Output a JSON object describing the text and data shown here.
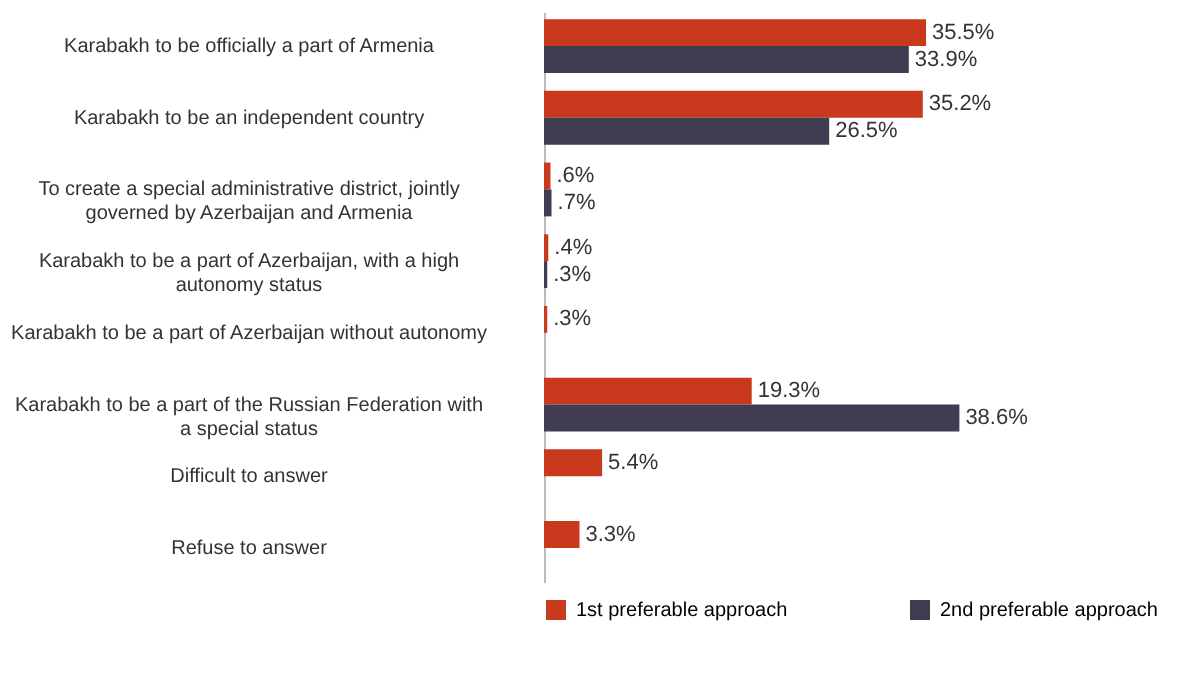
{
  "chart_data": {
    "type": "bar",
    "orientation": "horizontal",
    "legend": "bottom",
    "grid": false,
    "categories": [
      "Karabakh to be officially a part of Armenia",
      "Karabakh to be an independent country",
      "To create a special administrative district, jointly governed by Azerbaijan and Armenia",
      "Karabakh to be a part of Azerbaijan, with a high autonomy status",
      "Karabakh to be a part of Azerbaijan without autonomy",
      "Karabakh to be a part of the Russian Federation with a special status",
      "Difficult to answer",
      "Refuse to answer"
    ],
    "series": [
      {
        "name": "1st preferable approach",
        "color": "#c8391e",
        "values": [
          35.5,
          35.2,
          0.6,
          0.4,
          0.3,
          19.3,
          5.4,
          3.3
        ],
        "value_labels": [
          "35.5%",
          "35.2%",
          ".6%",
          ".4%",
          ".3%",
          "19.3%",
          "5.4%",
          "3.3%"
        ]
      },
      {
        "name": "2nd preferable approach",
        "color": "#403d52",
        "values": [
          33.9,
          26.5,
          0.7,
          0.3,
          null,
          38.6,
          null,
          null
        ],
        "value_labels": [
          "33.9%",
          "26.5%",
          ".7%",
          ".3%",
          null,
          "38.6%",
          null,
          null
        ]
      }
    ]
  }
}
